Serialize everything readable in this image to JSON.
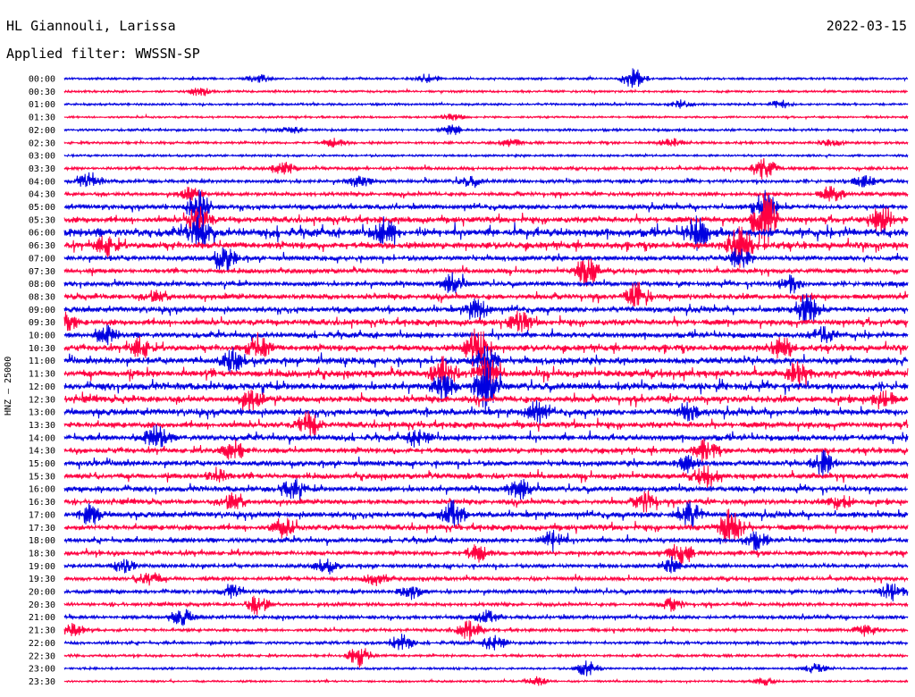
{
  "header": {
    "station": "HL Giannouli, Larissa",
    "date": "2022-03-15",
    "filter": "Applied filter: WWSSN-SP"
  },
  "channel_label": "HNZ – 25000",
  "colors": {
    "even_rows": "#0000e0",
    "odd_rows": "#ff0040"
  },
  "chart_data": {
    "type": "line",
    "title": "",
    "xlabel": "",
    "ylabel": "HNZ – 25000",
    "legend": "none",
    "grid": false,
    "row_interval_minutes": 30,
    "rows": [
      {
        "label": "00:00",
        "activity": 0.15,
        "bursts": [
          [
            0.23,
            0.4
          ],
          [
            0.43,
            0.4
          ],
          [
            0.675,
            1.0
          ]
        ]
      },
      {
        "label": "00:30",
        "activity": 0.15,
        "bursts": [
          [
            0.16,
            0.4
          ]
        ]
      },
      {
        "label": "01:00",
        "activity": 0.15,
        "bursts": [
          [
            0.73,
            0.4
          ],
          [
            0.85,
            0.4
          ]
        ]
      },
      {
        "label": "01:30",
        "activity": 0.12,
        "bursts": [
          [
            0.46,
            0.3
          ]
        ]
      },
      {
        "label": "02:00",
        "activity": 0.18,
        "bursts": [
          [
            0.27,
            0.3
          ],
          [
            0.46,
            0.5
          ]
        ]
      },
      {
        "label": "02:30",
        "activity": 0.2,
        "bursts": [
          [
            0.32,
            0.4
          ],
          [
            0.53,
            0.4
          ],
          [
            0.72,
            0.4
          ],
          [
            0.91,
            0.3
          ]
        ]
      },
      {
        "label": "03:00",
        "activity": 0.15,
        "bursts": []
      },
      {
        "label": "03:30",
        "activity": 0.25,
        "bursts": [
          [
            0.26,
            0.6
          ],
          [
            0.83,
            1.2
          ]
        ]
      },
      {
        "label": "04:00",
        "activity": 0.3,
        "bursts": [
          [
            0.03,
            0.8
          ],
          [
            0.35,
            0.6
          ],
          [
            0.48,
            0.5
          ],
          [
            0.95,
            0.5
          ]
        ]
      },
      {
        "label": "04:30",
        "activity": 0.35,
        "bursts": [
          [
            0.15,
            0.6
          ],
          [
            0.91,
            0.8
          ]
        ]
      },
      {
        "label": "05:00",
        "activity": 0.45,
        "bursts": [
          [
            0.16,
            1.5
          ],
          [
            0.83,
            1.5
          ]
        ]
      },
      {
        "label": "05:30",
        "activity": 0.6,
        "bursts": [
          [
            0.16,
            1.5
          ],
          [
            0.83,
            3.0
          ],
          [
            0.97,
            1.5
          ]
        ]
      },
      {
        "label": "06:00",
        "activity": 0.9,
        "bursts": [
          [
            0.16,
            1.5
          ],
          [
            0.38,
            1.2
          ],
          [
            0.75,
            1.5
          ]
        ]
      },
      {
        "label": "06:30",
        "activity": 0.7,
        "bursts": [
          [
            0.05,
            1.0
          ],
          [
            0.8,
            2.0
          ]
        ]
      },
      {
        "label": "07:00",
        "activity": 0.5,
        "bursts": [
          [
            0.19,
            1.2
          ],
          [
            0.8,
            1.0
          ]
        ]
      },
      {
        "label": "07:30",
        "activity": 0.45,
        "bursts": [
          [
            0.62,
            1.5
          ]
        ]
      },
      {
        "label": "08:00",
        "activity": 0.45,
        "bursts": [
          [
            0.46,
            1.0
          ],
          [
            0.86,
            0.8
          ]
        ]
      },
      {
        "label": "08:30",
        "activity": 0.55,
        "bursts": [
          [
            0.68,
            1.2
          ],
          [
            0.11,
            0.6
          ]
        ]
      },
      {
        "label": "09:00",
        "activity": 0.55,
        "bursts": [
          [
            0.49,
            1.0
          ],
          [
            0.88,
            1.5
          ]
        ]
      },
      {
        "label": "09:30",
        "activity": 0.6,
        "bursts": [
          [
            0.0,
            1.0
          ],
          [
            0.54,
            1.0
          ]
        ]
      },
      {
        "label": "10:00",
        "activity": 0.55,
        "bursts": [
          [
            0.05,
            0.8
          ],
          [
            0.9,
            0.8
          ]
        ]
      },
      {
        "label": "10:30",
        "activity": 0.65,
        "bursts": [
          [
            0.09,
            1.0
          ],
          [
            0.23,
            1.2
          ],
          [
            0.49,
            2.5
          ],
          [
            0.85,
            1.0
          ]
        ]
      },
      {
        "label": "11:00",
        "activity": 0.7,
        "bursts": [
          [
            0.2,
            1.0
          ],
          [
            0.5,
            1.5
          ]
        ]
      },
      {
        "label": "11:30",
        "activity": 0.75,
        "bursts": [
          [
            0.45,
            1.5
          ],
          [
            0.5,
            1.5
          ],
          [
            0.87,
            1.0
          ]
        ]
      },
      {
        "label": "12:00",
        "activity": 0.75,
        "bursts": [
          [
            0.5,
            2.5
          ],
          [
            0.45,
            1.2
          ]
        ]
      },
      {
        "label": "12:30",
        "activity": 0.7,
        "bursts": [
          [
            0.22,
            1.0
          ],
          [
            0.97,
            1.0
          ]
        ]
      },
      {
        "label": "13:00",
        "activity": 0.65,
        "bursts": [
          [
            0.56,
            1.0
          ],
          [
            0.74,
            0.8
          ]
        ]
      },
      {
        "label": "13:30",
        "activity": 0.6,
        "bursts": [
          [
            0.29,
            1.2
          ]
        ]
      },
      {
        "label": "14:00",
        "activity": 0.6,
        "bursts": [
          [
            0.11,
            1.2
          ],
          [
            0.42,
            0.8
          ]
        ]
      },
      {
        "label": "14:30",
        "activity": 0.55,
        "bursts": [
          [
            0.2,
            1.0
          ],
          [
            0.76,
            1.0
          ]
        ]
      },
      {
        "label": "15:00",
        "activity": 0.55,
        "bursts": [
          [
            0.9,
            1.2
          ],
          [
            0.74,
            0.8
          ]
        ]
      },
      {
        "label": "15:30",
        "activity": 0.55,
        "bursts": [
          [
            0.18,
            0.8
          ],
          [
            0.76,
            1.0
          ]
        ]
      },
      {
        "label": "16:00",
        "activity": 0.55,
        "bursts": [
          [
            0.27,
            1.0
          ],
          [
            0.54,
            1.0
          ]
        ]
      },
      {
        "label": "16:30",
        "activity": 0.5,
        "bursts": [
          [
            0.2,
            1.0
          ],
          [
            0.69,
            1.0
          ],
          [
            0.92,
            0.8
          ]
        ]
      },
      {
        "label": "17:00",
        "activity": 0.55,
        "bursts": [
          [
            0.03,
            1.0
          ],
          [
            0.46,
            1.2
          ],
          [
            0.74,
            1.5
          ]
        ]
      },
      {
        "label": "17:30",
        "activity": 0.55,
        "bursts": [
          [
            0.26,
            1.0
          ],
          [
            0.79,
            2.0
          ]
        ]
      },
      {
        "label": "18:00",
        "activity": 0.45,
        "bursts": [
          [
            0.58,
            1.0
          ],
          [
            0.82,
            0.8
          ]
        ]
      },
      {
        "label": "18:30",
        "activity": 0.45,
        "bursts": [
          [
            0.49,
            0.8
          ],
          [
            0.73,
            1.0
          ]
        ]
      },
      {
        "label": "19:00",
        "activity": 0.35,
        "bursts": [
          [
            0.07,
            0.6
          ],
          [
            0.31,
            0.7
          ],
          [
            0.72,
            0.6
          ]
        ]
      },
      {
        "label": "19:30",
        "activity": 0.35,
        "bursts": [
          [
            0.1,
            0.8
          ],
          [
            0.37,
            0.6
          ]
        ]
      },
      {
        "label": "20:00",
        "activity": 0.35,
        "bursts": [
          [
            0.2,
            0.6
          ],
          [
            0.41,
            0.7
          ],
          [
            0.98,
            1.0
          ]
        ]
      },
      {
        "label": "20:30",
        "activity": 0.3,
        "bursts": [
          [
            0.23,
            1.0
          ],
          [
            0.72,
            0.6
          ]
        ]
      },
      {
        "label": "21:00",
        "activity": 0.3,
        "bursts": [
          [
            0.14,
            0.8
          ],
          [
            0.5,
            0.6
          ]
        ]
      },
      {
        "label": "21:30",
        "activity": 0.25,
        "bursts": [
          [
            0.01,
            0.6
          ],
          [
            0.48,
            1.0
          ],
          [
            0.95,
            0.6
          ]
        ]
      },
      {
        "label": "22:00",
        "activity": 0.25,
        "bursts": [
          [
            0.4,
            0.8
          ],
          [
            0.51,
            0.8
          ]
        ]
      },
      {
        "label": "22:30",
        "activity": 0.2,
        "bursts": [
          [
            0.35,
            1.0
          ]
        ]
      },
      {
        "label": "23:00",
        "activity": 0.15,
        "bursts": [
          [
            0.62,
            0.8
          ],
          [
            0.89,
            0.5
          ]
        ]
      },
      {
        "label": "23:30",
        "activity": 0.12,
        "bursts": [
          [
            0.56,
            0.4
          ],
          [
            0.83,
            0.4
          ]
        ]
      }
    ]
  }
}
